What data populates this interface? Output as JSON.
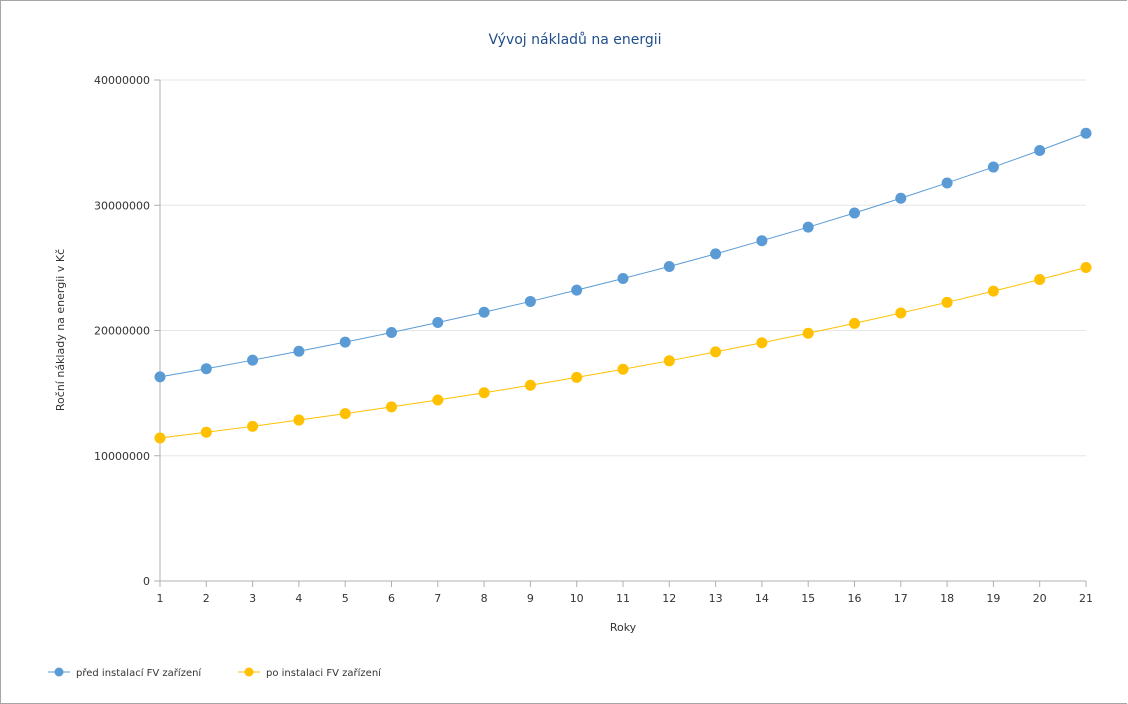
{
  "chart_data": {
    "type": "line",
    "title": "Vývoj nákladů na energii",
    "xlabel": "Roky",
    "ylabel": "Roční náklady na energii v Kč",
    "x": [
      1,
      2,
      3,
      4,
      5,
      6,
      7,
      8,
      9,
      10,
      11,
      12,
      13,
      14,
      15,
      16,
      17,
      18,
      19,
      20,
      21
    ],
    "x_ticks": [
      "1",
      "2",
      "3",
      "4",
      "5",
      "6",
      "7",
      "8",
      "9",
      "10",
      "11",
      "12",
      "13",
      "14",
      "15",
      "16",
      "17",
      "18",
      "19",
      "20",
      "21"
    ],
    "ylim": [
      0,
      40000000
    ],
    "y_ticks": [
      "0",
      "10000000",
      "20000000",
      "30000000",
      "40000000"
    ],
    "y_tick_values": [
      0,
      10000000,
      20000000,
      30000000,
      40000000
    ],
    "grid": true,
    "legend_position": "bottom-left",
    "series": [
      {
        "name": "před instalací FV zařízení",
        "color": "#5b9bd5",
        "values": [
          16300000,
          16950000,
          17630000,
          18340000,
          19070000,
          19840000,
          20640000,
          21460000,
          22320000,
          23220000,
          24150000,
          25110000,
          26120000,
          27170000,
          28250000,
          29380000,
          30560000,
          31780000,
          33050000,
          34370000,
          35750000
        ]
      },
      {
        "name": "po instalaci FV zařízení",
        "color": "#ffc000",
        "values": [
          11420000,
          11880000,
          12350000,
          12850000,
          13360000,
          13900000,
          14450000,
          15030000,
          15630000,
          16260000,
          16910000,
          17580000,
          18290000,
          19020000,
          19780000,
          20570000,
          21400000,
          22250000,
          23140000,
          24070000,
          25030000
        ]
      }
    ]
  }
}
